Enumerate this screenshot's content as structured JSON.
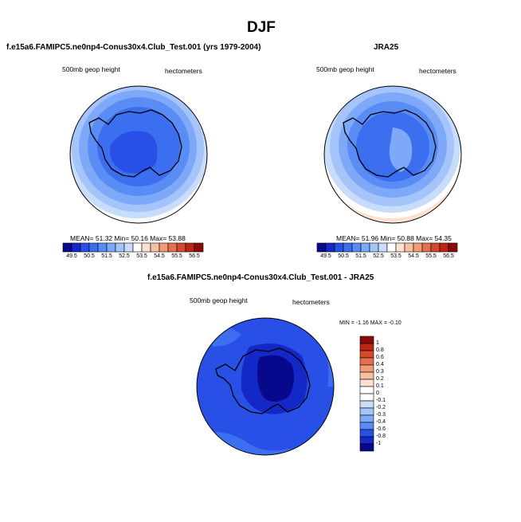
{
  "figure": {
    "title": "DJF"
  },
  "panels": [
    {
      "title": "f.e15a6.FAMIPC5.ne0np4-Conus30x4.Club_Test.001 (yrs 1979-2004)",
      "left_label": "500mb geop height",
      "right_label": "hectometers",
      "stats": "MEAN=  51.32  Min=  50.16  Max=  53.88"
    },
    {
      "title": "JRA25",
      "left_label": "500mb geop height",
      "right_label": "hectometers",
      "stats": "MEAN=  51.96  Min=  50.88  Max=  54.35"
    },
    {
      "title": "f.e15a6.FAMIPC5.ne0np4-Conus30x4.Club_Test.001 - JRA25",
      "left_label": "500mb geop height",
      "right_label": "hectometers",
      "stats": "MIN =  -1.16  MAX =  -0.10"
    }
  ],
  "colorbar_field": {
    "labels": [
      "49.5",
      "50.5",
      "51.5",
      "52.5",
      "53.5",
      "54.5",
      "55.5",
      "56.5"
    ],
    "colors": [
      "#08088c",
      "#1428c8",
      "#2850e6",
      "#3c6ef0",
      "#5a8cf5",
      "#7ea8f8",
      "#a4c4fa",
      "#c8dcfc",
      "#ffffff",
      "#fce1d2",
      "#f8c0a0",
      "#f09c78",
      "#e4704c",
      "#d4482c",
      "#bc2414",
      "#8c0a0a"
    ]
  },
  "colorbar_diff": {
    "labels": [
      "1",
      "0.8",
      "0.6",
      "0.4",
      "0.3",
      "0.2",
      "0.1",
      "0",
      "-0.1",
      "-0.2",
      "-0.3",
      "-0.4",
      "-0.6",
      "-0.8",
      "-1"
    ],
    "colors": [
      "#8c0a0a",
      "#bc2414",
      "#d4482c",
      "#e4704c",
      "#f09c78",
      "#f8c0a0",
      "#fce1d2",
      "#ffffff",
      "#ffffff",
      "#c8dcfc",
      "#a4c4fa",
      "#7ea8f8",
      "#5a8cf5",
      "#2850e6",
      "#1428c8",
      "#08088c"
    ]
  },
  "chart_data": [
    {
      "type": "heatmap",
      "title": "f.e15a6.FAMIPC5.ne0np4-Conus30x4.Club_Test.001 (yrs 1979-2004)",
      "variable": "500mb geop height",
      "units": "hectometers",
      "mean": 51.32,
      "min": 50.16,
      "max": 53.88,
      "levels": [
        49.5,
        50,
        50.5,
        51,
        51.5,
        52,
        52.5,
        53,
        53.5,
        54,
        54.5,
        55,
        55.5,
        56,
        56.5
      ],
      "projection": "south polar stereographic"
    },
    {
      "type": "heatmap",
      "title": "JRA25",
      "variable": "500mb geop height",
      "units": "hectometers",
      "mean": 51.96,
      "min": 50.88,
      "max": 54.35,
      "levels": [
        49.5,
        50,
        50.5,
        51,
        51.5,
        52,
        52.5,
        53,
        53.5,
        54,
        54.5,
        55,
        55.5,
        56,
        56.5
      ],
      "projection": "south polar stereographic"
    },
    {
      "type": "heatmap",
      "title": "f.e15a6.FAMIPC5.ne0np4-Conus30x4.Club_Test.001 - JRA25",
      "variable": "500mb geop height",
      "units": "hectometers",
      "min": -1.16,
      "max": -0.1,
      "levels": [
        -1,
        -0.8,
        -0.6,
        -0.4,
        -0.3,
        -0.2,
        -0.1,
        0,
        0.1,
        0.2,
        0.3,
        0.4,
        0.6,
        0.8,
        1
      ],
      "projection": "south polar stereographic"
    }
  ]
}
